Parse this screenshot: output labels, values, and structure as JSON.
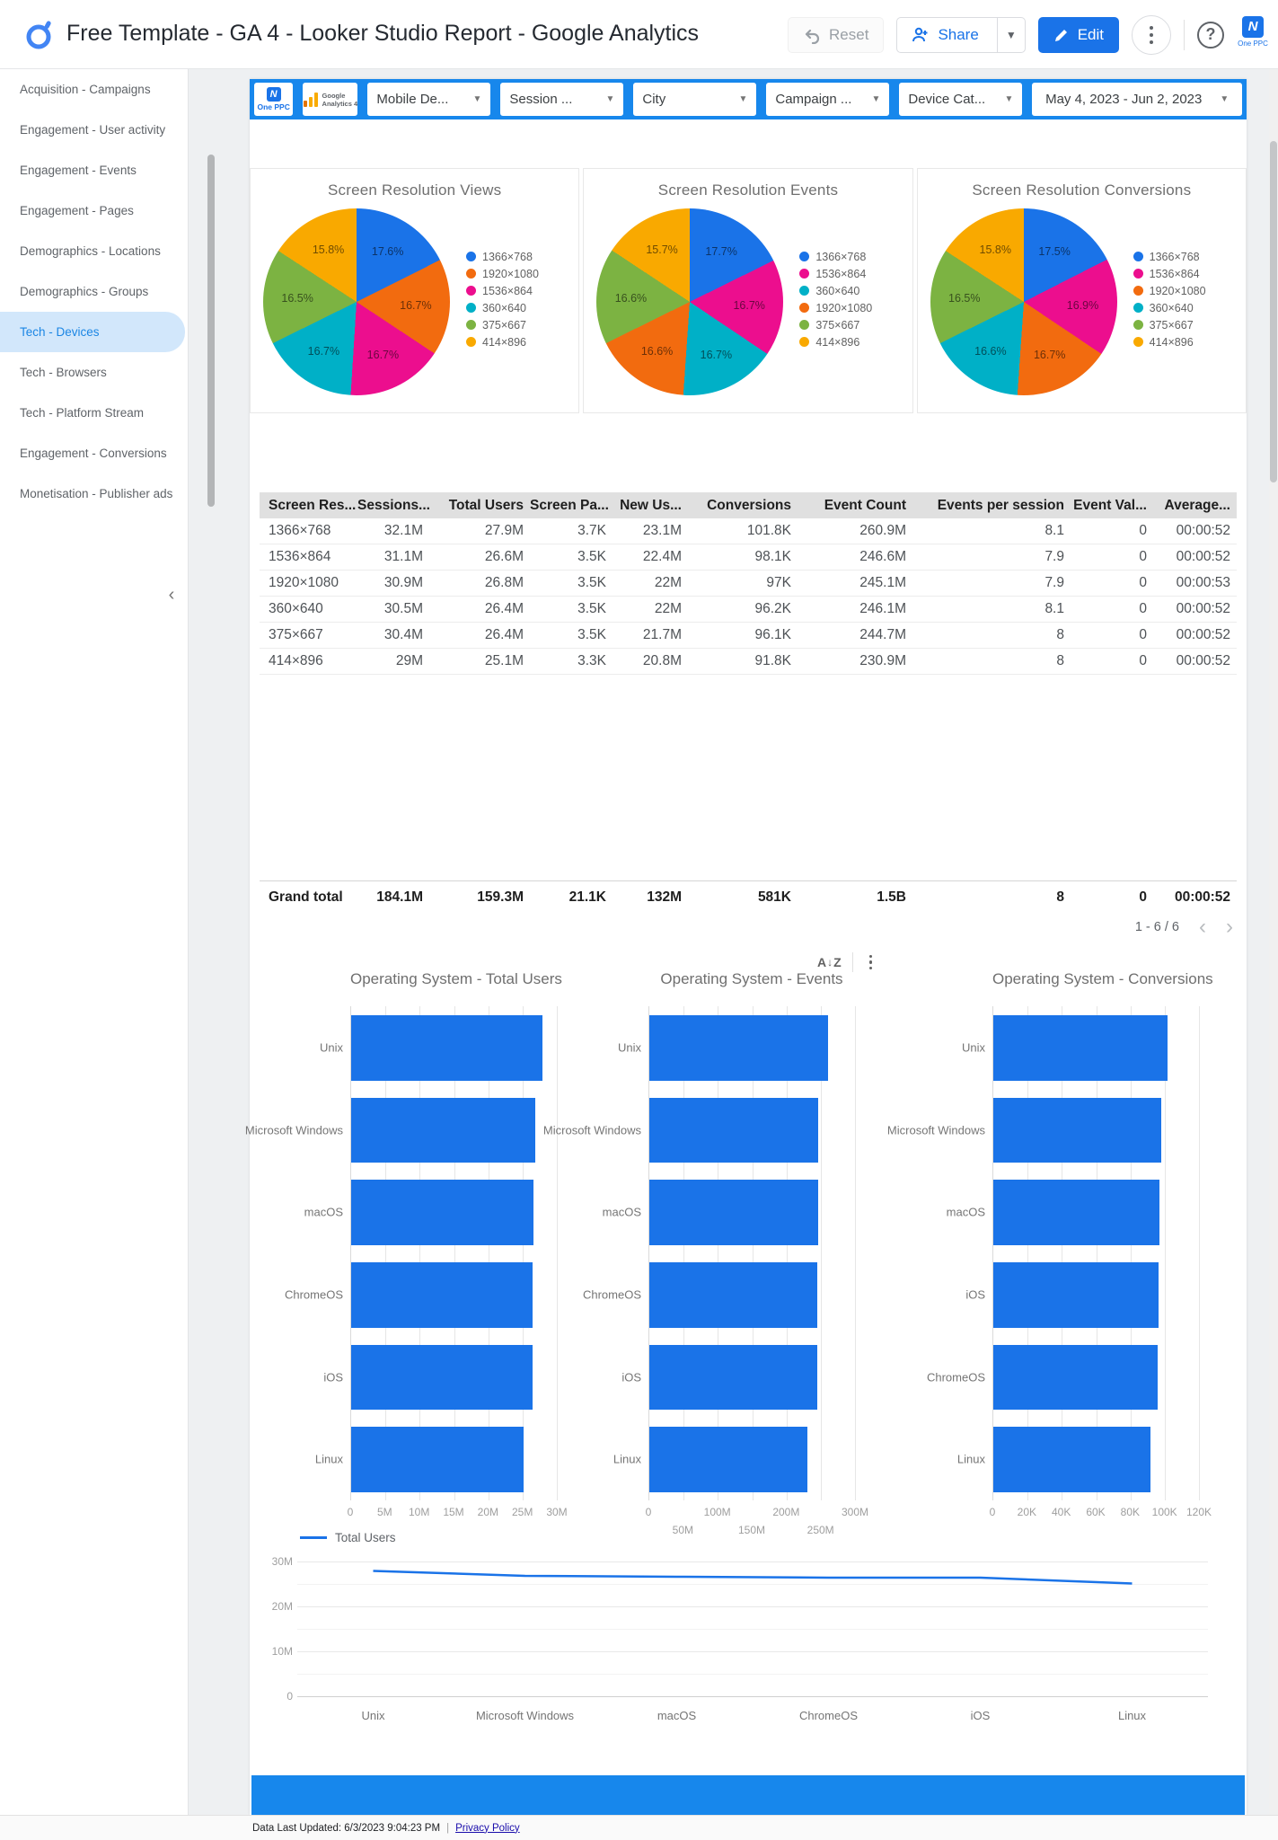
{
  "header": {
    "title": "Free Template - GA 4 - Looker Studio Report - Google Analytics",
    "reset_label": "Reset",
    "share_label": "Share",
    "edit_label": "Edit",
    "account_name": "One PPC"
  },
  "sidebar": {
    "items": [
      "Acquisition - Campaigns",
      "Engagement - User activity",
      "Engagement - Events",
      "Engagement - Pages",
      "Demographics - Locations",
      "Demographics - Groups",
      "Tech - Devices",
      "Tech - Browsers",
      "Tech - Platform Stream",
      "Engagement - Conversions",
      "Monetisation - Publisher ads"
    ],
    "active_index": 6
  },
  "filter_bar": {
    "brand_primary": "One PPC",
    "brand_secondary_line1": "Google",
    "brand_secondary_line2": "Analytics 4",
    "filters": [
      "Mobile De...",
      "Session ...",
      "City",
      "Campaign ...",
      "Device Cat..."
    ],
    "date_range": "May 4, 2023 - Jun 2, 2023"
  },
  "colors": {
    "band_blue": "#1787ec",
    "accent_blue": "#1a73e8",
    "bar_blue": "#1a73e8"
  },
  "table": {
    "columns": [
      "Screen Res...",
      "Sessions...",
      "Total Users",
      "Screen Pa...",
      "New Us...",
      "Conversions",
      "Event Count",
      "Events per session",
      "Event Val...",
      "Average..."
    ],
    "rows": [
      [
        "1366×768",
        "32.1M",
        "27.9M",
        "3.7K",
        "23.1M",
        "101.8K",
        "260.9M",
        "8.1",
        "0",
        "00:00:52"
      ],
      [
        "1536×864",
        "31.1M",
        "26.6M",
        "3.5K",
        "22.4M",
        "98.1K",
        "246.6M",
        "7.9",
        "0",
        "00:00:52"
      ],
      [
        "1920×1080",
        "30.9M",
        "26.8M",
        "3.5K",
        "22M",
        "97K",
        "245.1M",
        "7.9",
        "0",
        "00:00:53"
      ],
      [
        "360×640",
        "30.5M",
        "26.4M",
        "3.5K",
        "22M",
        "96.2K",
        "246.1M",
        "8.1",
        "0",
        "00:00:52"
      ],
      [
        "375×667",
        "30.4M",
        "26.4M",
        "3.5K",
        "21.7M",
        "96.1K",
        "244.7M",
        "8",
        "0",
        "00:00:52"
      ],
      [
        "414×896",
        "29M",
        "25.1M",
        "3.3K",
        "20.8M",
        "91.8K",
        "230.9M",
        "8",
        "0",
        "00:00:52"
      ]
    ],
    "grand_total": [
      "Grand total",
      "184.1M",
      "159.3M",
      "21.1K",
      "132M",
      "581K",
      "1.5B",
      "8",
      "0",
      "00:00:52"
    ],
    "pagination": "1 - 6 / 6"
  },
  "controls": {
    "sort_a": "A",
    "sort_z": "Z"
  },
  "chart_data": [
    {
      "type": "pie",
      "title": "Screen Resolution Views",
      "slices": [
        {
          "label": "1366×768",
          "value": 17.6,
          "color": "#1a73e8"
        },
        {
          "label": "1920×1080",
          "value": 16.7,
          "color": "#f26b0f"
        },
        {
          "label": "1536×864",
          "value": 16.7,
          "color": "#ec0e8e"
        },
        {
          "label": "360×640",
          "value": 16.7,
          "color": "#00b0c7"
        },
        {
          "label": "375×667",
          "value": 16.5,
          "color": "#7cb342"
        },
        {
          "label": "414×896",
          "value": 15.8,
          "color": "#f9a900"
        }
      ]
    },
    {
      "type": "pie",
      "title": "Screen Resolution Events",
      "slices": [
        {
          "label": "1366×768",
          "value": 17.7,
          "color": "#1a73e8"
        },
        {
          "label": "1536×864",
          "value": 16.7,
          "color": "#ec0e8e"
        },
        {
          "label": "360×640",
          "value": 16.7,
          "color": "#00b0c7"
        },
        {
          "label": "1920×1080",
          "value": 16.6,
          "color": "#f26b0f"
        },
        {
          "label": "375×667",
          "value": 16.6,
          "color": "#7cb342"
        },
        {
          "label": "414×896",
          "value": 15.7,
          "color": "#f9a900"
        }
      ]
    },
    {
      "type": "pie",
      "title": "Screen Resolution Conversions",
      "slices": [
        {
          "label": "1366×768",
          "value": 17.5,
          "color": "#1a73e8"
        },
        {
          "label": "1536×864",
          "value": 16.9,
          "color": "#ec0e8e"
        },
        {
          "label": "1920×1080",
          "value": 16.7,
          "color": "#f26b0f"
        },
        {
          "label": "360×640",
          "value": 16.6,
          "color": "#00b0c7"
        },
        {
          "label": "375×667",
          "value": 16.5,
          "color": "#7cb342"
        },
        {
          "label": "414×896",
          "value": 15.8,
          "color": "#f9a900"
        }
      ]
    },
    {
      "type": "bar",
      "orientation": "horizontal",
      "title": "Operating System - Total Users",
      "categories": [
        "Unix",
        "Microsoft Windows",
        "macOS",
        "ChromeOS",
        "iOS",
        "Linux"
      ],
      "values": [
        27900000,
        26800000,
        26600000,
        26400000,
        26400000,
        25100000
      ],
      "xticks": [
        "0",
        "5M",
        "10M",
        "15M",
        "20M",
        "25M",
        "30M"
      ],
      "xmax": 30000000,
      "stagger_ticks": false,
      "color": "#1a73e8"
    },
    {
      "type": "bar",
      "orientation": "horizontal",
      "title": "Operating System - Events",
      "categories": [
        "Unix",
        "Microsoft Windows",
        "macOS",
        "ChromeOS",
        "iOS",
        "Linux"
      ],
      "values": [
        260900000,
        246600000,
        246100000,
        245100000,
        244700000,
        230900000
      ],
      "xticks": [
        "0",
        "50M",
        "100M",
        "150M",
        "200M",
        "250M",
        "300M"
      ],
      "xmax": 300000000,
      "stagger_ticks": true,
      "color": "#1a73e8"
    },
    {
      "type": "bar",
      "orientation": "horizontal",
      "title": "Operating System - Conversions",
      "categories": [
        "Unix",
        "Microsoft Windows",
        "macOS",
        "iOS",
        "ChromeOS",
        "Linux"
      ],
      "values": [
        101800,
        98100,
        97000,
        96200,
        96100,
        91800
      ],
      "xticks": [
        "0",
        "20K",
        "40K",
        "60K",
        "80K",
        "100K",
        "120K"
      ],
      "xmax": 120000,
      "stagger_ticks": false,
      "color": "#1a73e8"
    },
    {
      "type": "line",
      "legend": "Total Users",
      "categories": [
        "Unix",
        "Microsoft Windows",
        "macOS",
        "ChromeOS",
        "iOS",
        "Linux"
      ],
      "values": [
        27900000,
        26800000,
        26600000,
        26400000,
        26400000,
        25100000
      ],
      "yticks": [
        "0",
        "10M",
        "20M",
        "30M"
      ],
      "ymax": 30000000,
      "line_color": "#1a73e8"
    }
  ],
  "footer": {
    "updated_label": "Data Last Updated: 6/3/2023 9:04:23 PM",
    "separator": "|",
    "privacy_label": "Privacy Policy"
  }
}
